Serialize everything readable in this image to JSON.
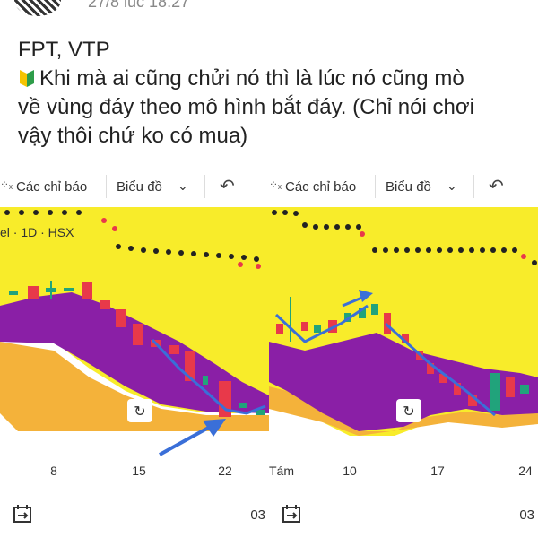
{
  "post": {
    "timestamp": "27/8 lúc 18:27",
    "title": "FPT, VTP",
    "body_lines": [
      "Khi mà ai cũng chửi nó thì là lúc nó cũng mò",
      "về vùng đáy theo mô hình bắt đáy. (Chỉ nói chơi",
      "vậy thôi chứ ko có mua)"
    ]
  },
  "panels": [
    {
      "toolbar": {
        "indicators": "Các chỉ báo",
        "chart": "Biểu đồ"
      },
      "symbol": "el · 1D · HSX",
      "x_labels": [
        "8",
        "15",
        "22"
      ],
      "footer_label": "03"
    },
    {
      "toolbar": {
        "indicators": "Các chỉ báo",
        "chart": "Biểu đồ"
      },
      "x_labels": [
        "Tám",
        "10",
        "17",
        "24"
      ],
      "footer_label": "03"
    }
  ],
  "colors": {
    "chart_bg": "#f8ec2a",
    "cloud_purple": "#8a1fa6",
    "cloud_orange": "#f4b23a",
    "candle_red": "#e8394a",
    "candle_green": "#21a37b",
    "arrow_blue": "#3a6fd8"
  }
}
